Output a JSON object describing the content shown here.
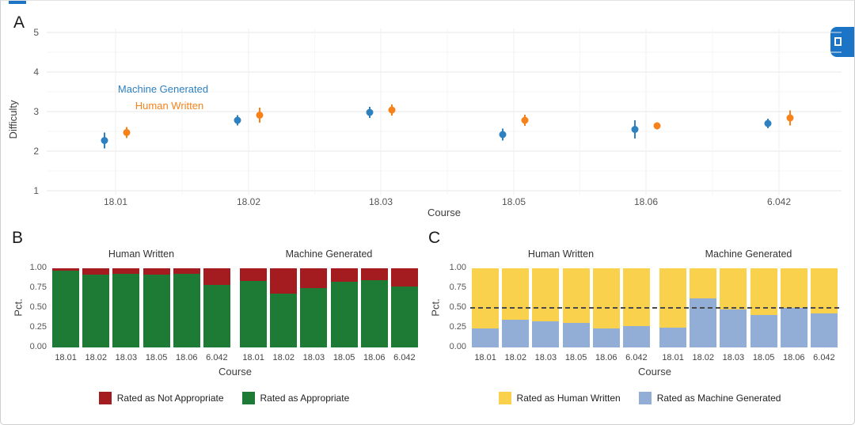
{
  "figure": {
    "panels": [
      {
        "label": "A"
      },
      {
        "label": "B"
      },
      {
        "label": "C"
      }
    ]
  },
  "chrome": {
    "accent_color": "#1B74C5"
  },
  "chart_data": [
    {
      "panel": "A",
      "type": "scatter",
      "xlabel": "Course",
      "ylabel": "Difficulty",
      "ylim": [
        1,
        5
      ],
      "yticks": [
        1,
        2,
        3,
        4,
        5
      ],
      "categories": [
        "18.01",
        "18.02",
        "18.03",
        "18.05",
        "18.06",
        "6.042"
      ],
      "legend_position": "inside-top-left",
      "grid": true,
      "series": [
        {
          "name": "Machine Generated",
          "color": "#2E80BF",
          "values": [
            2.27,
            2.78,
            2.98,
            2.42,
            2.55,
            2.7
          ],
          "error": [
            0.2,
            0.13,
            0.14,
            0.15,
            0.23,
            0.12
          ]
        },
        {
          "name": "Human Written",
          "color": "#F8821A",
          "values": [
            2.47,
            2.91,
            3.04,
            2.78,
            2.64,
            2.84
          ],
          "error": [
            0.14,
            0.19,
            0.14,
            0.14,
            0.09,
            0.19
          ]
        }
      ]
    },
    {
      "panel": "B",
      "type": "bar",
      "stacked": true,
      "xlabel": "Course",
      "ylabel": "Pct.",
      "ylim": [
        0,
        1
      ],
      "yticks": [
        "0.00",
        "0.25",
        "0.50",
        "0.75",
        "1.00"
      ],
      "categories": [
        "18.01",
        "18.02",
        "18.03",
        "18.05",
        "18.06",
        "6.042"
      ],
      "bottom_color": "#1E7B36",
      "top_color": "#A51C20",
      "facets": [
        {
          "title": "Human Written",
          "bottom_values": [
            0.97,
            0.92,
            0.93,
            0.92,
            0.93,
            0.79
          ]
        },
        {
          "title": "Machine Generated",
          "bottom_values": [
            0.84,
            0.68,
            0.75,
            0.83,
            0.85,
            0.77
          ]
        }
      ],
      "legend": [
        {
          "label": "Rated as Not Appropriate",
          "color": "#A51C20"
        },
        {
          "label": "Rated as Appropriate",
          "color": "#1E7B36"
        }
      ],
      "legend_position": "bottom"
    },
    {
      "panel": "C",
      "type": "bar",
      "stacked": true,
      "xlabel": "Course",
      "ylabel": "Pct.",
      "ylim": [
        0,
        1
      ],
      "yticks": [
        "0.00",
        "0.25",
        "0.50",
        "0.75",
        "1.00"
      ],
      "categories": [
        "18.01",
        "18.02",
        "18.03",
        "18.05",
        "18.06",
        "6.042"
      ],
      "bottom_color": "#93AED6",
      "top_color": "#F9D14C",
      "dashed_line": 0.5,
      "facets": [
        {
          "title": "Human Written",
          "bottom_values": [
            0.24,
            0.35,
            0.33,
            0.31,
            0.24,
            0.27
          ]
        },
        {
          "title": "Machine Generated",
          "bottom_values": [
            0.25,
            0.62,
            0.48,
            0.41,
            0.5,
            0.43
          ]
        }
      ],
      "legend": [
        {
          "label": "Rated as Human Written",
          "color": "#F9D14C"
        },
        {
          "label": "Rated as Machine Generated",
          "color": "#93AED6"
        }
      ],
      "legend_position": "bottom"
    }
  ]
}
